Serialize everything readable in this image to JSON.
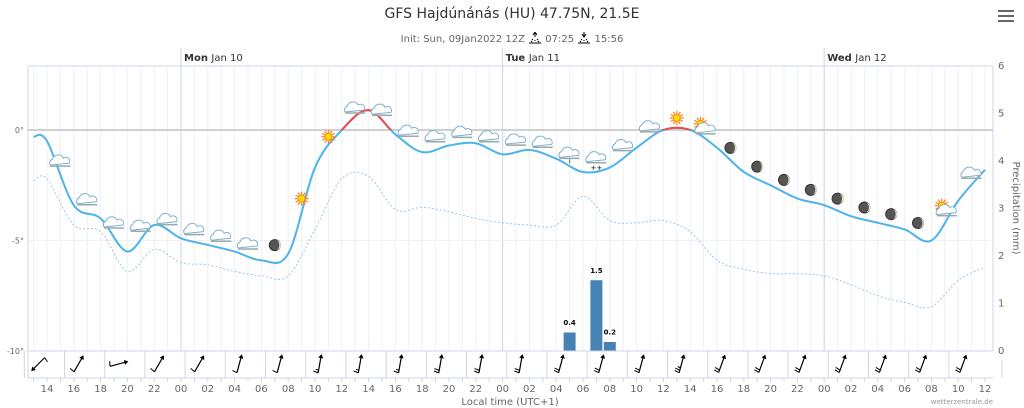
{
  "header": {
    "title": "GFS Hajdúnánás (HU) 47.75N, 21.5E",
    "init": "Init: Sun, 09Jan2022 12Z",
    "sunrise": "07:25",
    "sunset": "15:56",
    "menu_icon": "hamburger-menu-icon"
  },
  "credit": "wetterzentrale.de",
  "colors": {
    "temperature": "#4db3ea",
    "temperature_above_zero": "#f04848",
    "dewpoint": "#9ec4e8",
    "precipitation": "#4682b4"
  },
  "chart_data": {
    "type": "line",
    "xlabel": "Local time (UTC+1)",
    "ylabel_right": "Precipitation (mm)",
    "days": [
      {
        "weekday": "Mon",
        "date": "Jan 10",
        "hour": 24
      },
      {
        "weekday": "Tue",
        "date": "Jan 11",
        "hour": 48
      },
      {
        "weekday": "Wed",
        "date": "Jan 12",
        "hour": 72
      }
    ],
    "x_tick_labels": [
      "14",
      "16",
      "18",
      "20",
      "22",
      "00",
      "02",
      "04",
      "06",
      "08",
      "10",
      "12",
      "14",
      "16",
      "18",
      "20",
      "22",
      "00",
      "02",
      "04",
      "06",
      "08",
      "10",
      "12",
      "14",
      "16",
      "18",
      "20",
      "22",
      "00",
      "02",
      "04",
      "06",
      "08",
      "10",
      "12"
    ],
    "x_range_hours_from_jan9_0000": [
      12.5,
      84.6
    ],
    "y_left": {
      "ticks": [
        "0°",
        "-5°",
        "-10°"
      ],
      "tick_values": [
        0,
        -5,
        -10
      ],
      "range": [
        -10,
        2.9
      ]
    },
    "y_right": {
      "ticks": [
        "0",
        "1",
        "2",
        "3",
        "4",
        "5",
        "6"
      ],
      "range": [
        0,
        6
      ]
    },
    "hours": [
      13,
      14,
      16,
      18,
      20,
      22,
      24,
      26,
      28,
      30,
      32,
      34,
      36,
      38,
      40,
      42,
      44,
      46,
      48,
      50,
      52,
      54,
      56,
      58,
      60,
      62,
      64,
      66,
      68,
      70,
      72,
      74,
      76,
      78,
      80,
      82,
      84
    ],
    "series": [
      {
        "key": "temperature",
        "values": [
          -0.3,
          -0.5,
          -3.4,
          -4.0,
          -5.5,
          -4.3,
          -4.9,
          -5.2,
          -5.5,
          -5.9,
          -5.6,
          -1.7,
          0.0,
          0.9,
          -0.2,
          -1.0,
          -0.7,
          -0.6,
          -1.1,
          -0.9,
          -1.3,
          -1.9,
          -1.7,
          -0.8,
          0.0,
          0.0,
          -0.8,
          -1.9,
          -2.5,
          -3.1,
          -3.4,
          -3.9,
          -4.2,
          -4.5,
          -5.0,
          -3.2,
          -1.8
        ]
      },
      {
        "key": "dewpoint",
        "style": "dotted",
        "values": [
          -2.3,
          -2.2,
          -4.3,
          -4.6,
          -6.4,
          -5.4,
          -6.0,
          -6.1,
          -6.4,
          -6.6,
          -6.6,
          -4.5,
          -2.2,
          -2.1,
          -3.6,
          -3.5,
          -3.7,
          -4.0,
          -4.2,
          -4.3,
          -4.3,
          -3.0,
          -4.1,
          -4.2,
          -4.1,
          -4.6,
          -5.9,
          -6.3,
          -6.5,
          -6.5,
          -6.6,
          -7.0,
          -7.5,
          -7.8,
          -8.0,
          -6.8,
          -6.2
        ]
      }
    ],
    "precipitation": [
      {
        "hour": 53,
        "value": 0.4,
        "label": "0.4"
      },
      {
        "hour": 55,
        "value": 1.5,
        "label": "1.5"
      },
      {
        "hour": 56,
        "value": 0.2,
        "label": "0.2"
      }
    ],
    "weather_icons": [
      {
        "hour": 15,
        "icon": "cloud"
      },
      {
        "hour": 17,
        "icon": "cloud"
      },
      {
        "hour": 19,
        "icon": "cloud"
      },
      {
        "hour": 21,
        "icon": "cloud"
      },
      {
        "hour": 23,
        "icon": "cloud"
      },
      {
        "hour": 25,
        "icon": "cloud"
      },
      {
        "hour": 27,
        "icon": "cloud"
      },
      {
        "hour": 29,
        "icon": "cloud"
      },
      {
        "hour": 31,
        "icon": "moon"
      },
      {
        "hour": 33,
        "icon": "sun"
      },
      {
        "hour": 35,
        "icon": "sun"
      },
      {
        "hour": 37,
        "icon": "cloud"
      },
      {
        "hour": 39,
        "icon": "cloud"
      },
      {
        "hour": 41,
        "icon": "cloud"
      },
      {
        "hour": 43,
        "icon": "cloud"
      },
      {
        "hour": 45,
        "icon": "cloud"
      },
      {
        "hour": 47,
        "icon": "cloud"
      },
      {
        "hour": 49,
        "icon": "cloud"
      },
      {
        "hour": 51,
        "icon": "cloud"
      },
      {
        "hour": 53,
        "icon": "cloud-rain"
      },
      {
        "hour": 55,
        "icon": "cloud-snow"
      },
      {
        "hour": 57,
        "icon": "cloud"
      },
      {
        "hour": 59,
        "icon": "cloud"
      },
      {
        "hour": 61,
        "icon": "sun"
      },
      {
        "hour": 63,
        "icon": "sun-cloud"
      },
      {
        "hour": 65,
        "icon": "moon"
      },
      {
        "hour": 67,
        "icon": "moon"
      },
      {
        "hour": 69,
        "icon": "moon"
      },
      {
        "hour": 71,
        "icon": "moon"
      },
      {
        "hour": 73,
        "icon": "moon"
      },
      {
        "hour": 75,
        "icon": "moon"
      },
      {
        "hour": 77,
        "icon": "moon"
      },
      {
        "hour": 79,
        "icon": "moon"
      },
      {
        "hour": 81,
        "icon": "sun-cloud"
      },
      {
        "hour": 83,
        "icon": "cloud"
      }
    ],
    "wind_barbs": {
      "hours": [
        13.5,
        16.5,
        19.5,
        22.5,
        25.5,
        28.5,
        31.5,
        34.5,
        37.5,
        40.5,
        43.5,
        46.5,
        49.5,
        52.5,
        55.5,
        58.5,
        61.5,
        64.5,
        67.5,
        70.5,
        73.5,
        76.5,
        79.5,
        82.5
      ],
      "direction_from_deg": [
        225,
        30,
        75,
        30,
        30,
        15,
        15,
        10,
        10,
        10,
        10,
        10,
        10,
        15,
        15,
        15,
        15,
        20,
        20,
        20,
        20,
        20,
        20,
        20
      ],
      "feathers": [
        1,
        1,
        1,
        1,
        1,
        1,
        1,
        1.5,
        1.5,
        1.5,
        2,
        2,
        2,
        2,
        2,
        2,
        2.5,
        2,
        2,
        2,
        2,
        2,
        2,
        2
      ]
    }
  }
}
